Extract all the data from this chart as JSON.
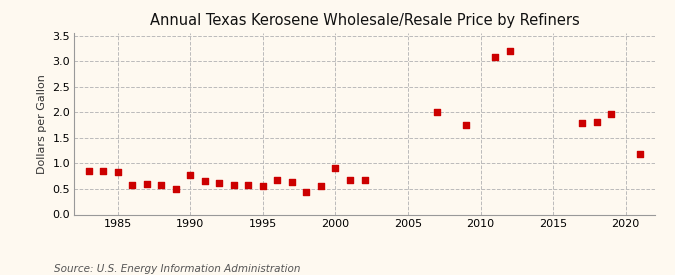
{
  "title": "Annual Texas Kerosene Wholesale/Resale Price by Refiners",
  "ylabel": "Dollars per Gallon",
  "source": "Source: U.S. Energy Information Administration",
  "background_color": "#fef9f0",
  "plot_bg_color": "#fef9f0",
  "marker_color": "#cc0000",
  "grid_color": "#bbbbbb",
  "spine_color": "#999999",
  "xlim": [
    1982,
    2022
  ],
  "ylim": [
    0.0,
    3.55
  ],
  "yticks": [
    0.0,
    0.5,
    1.0,
    1.5,
    2.0,
    2.5,
    3.0,
    3.5
  ],
  "xticks": [
    1985,
    1990,
    1995,
    2000,
    2005,
    2010,
    2015,
    2020
  ],
  "years": [
    1983,
    1984,
    1985,
    1986,
    1987,
    1988,
    1989,
    1990,
    1991,
    1992,
    1993,
    1994,
    1995,
    1996,
    1997,
    1998,
    1999,
    2000,
    2001,
    2002,
    2007,
    2009,
    2011,
    2012,
    2017,
    2018,
    2019,
    2021
  ],
  "values": [
    0.86,
    0.86,
    0.84,
    0.58,
    0.6,
    0.57,
    0.5,
    0.77,
    0.66,
    0.61,
    0.58,
    0.57,
    0.55,
    0.67,
    0.64,
    0.44,
    0.55,
    0.91,
    0.68,
    0.68,
    2.01,
    1.76,
    3.09,
    3.19,
    1.79,
    1.81,
    1.96,
    1.19
  ],
  "title_fontsize": 10.5,
  "tick_fontsize": 8,
  "ylabel_fontsize": 8,
  "source_fontsize": 7.5,
  "marker_size": 16
}
